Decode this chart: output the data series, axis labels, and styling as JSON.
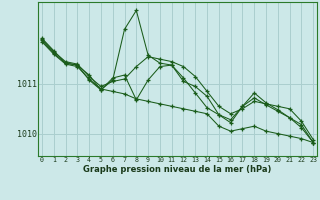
{
  "title": "Graphe pression niveau de la mer (hPa)",
  "background_color": "#cce8e8",
  "grid_color": "#aacece",
  "line_color": "#1a5c1a",
  "x_ticks": [
    0,
    1,
    2,
    3,
    4,
    5,
    6,
    7,
    8,
    9,
    10,
    11,
    12,
    13,
    14,
    15,
    16,
    17,
    18,
    19,
    20,
    21,
    22,
    23
  ],
  "ylim": [
    1009.55,
    1012.65
  ],
  "yticks": [
    1010,
    1011
  ],
  "series": [
    [
      1011.85,
      1011.6,
      1011.4,
      1011.35,
      1011.1,
      1010.9,
      1010.85,
      1010.8,
      1010.7,
      1010.65,
      1010.6,
      1010.55,
      1010.5,
      1010.45,
      1010.4,
      1010.15,
      1010.05,
      1010.1,
      1010.15,
      1010.05,
      1010.0,
      1009.95,
      1009.9,
      1009.82
    ],
    [
      1011.9,
      1011.65,
      1011.45,
      1011.4,
      1011.15,
      1010.95,
      1011.05,
      1011.1,
      1011.35,
      1011.55,
      1011.5,
      1011.45,
      1011.35,
      1011.15,
      1010.85,
      1010.55,
      1010.4,
      1010.5,
      1010.65,
      1010.6,
      1010.55,
      1010.5,
      1010.25,
      1009.88
    ],
    [
      1011.88,
      1011.62,
      1011.42,
      1011.38,
      1011.18,
      1010.88,
      1011.12,
      1011.18,
      1010.68,
      1011.08,
      1011.35,
      1011.38,
      1011.05,
      1010.95,
      1010.75,
      1010.38,
      1010.28,
      1010.55,
      1010.72,
      1010.58,
      1010.45,
      1010.32,
      1010.12,
      1009.82
    ],
    [
      1011.92,
      1011.67,
      1011.42,
      1011.38,
      1011.08,
      1010.88,
      1011.08,
      1012.1,
      1012.48,
      1011.58,
      1011.42,
      1011.38,
      1011.12,
      1010.82,
      1010.52,
      1010.38,
      1010.22,
      1010.55,
      1010.82,
      1010.62,
      1010.48,
      1010.32,
      1010.18,
      1009.82
    ]
  ]
}
